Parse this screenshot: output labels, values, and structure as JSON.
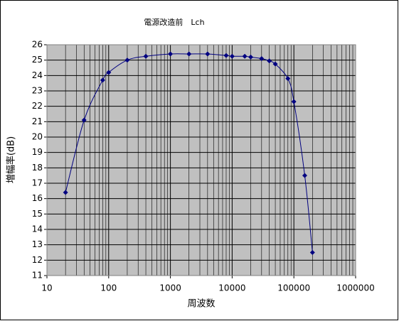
{
  "chart_data": {
    "type": "line",
    "title": "電源改造前　Lch",
    "x_label": "周波数",
    "y_label": "増幅率(dB)",
    "x": [
      20,
      40,
      80,
      100,
      200,
      400,
      1000,
      2000,
      4000,
      8000,
      10000,
      16000,
      20000,
      30000,
      40000,
      50000,
      80000,
      100000,
      150000,
      200000
    ],
    "series": [
      {
        "name": "Lch",
        "color": "#000080",
        "values": [
          16.4,
          21.1,
          23.7,
          24.2,
          25.0,
          25.25,
          25.4,
          25.4,
          25.4,
          25.3,
          25.25,
          25.25,
          25.2,
          25.1,
          24.95,
          24.75,
          23.8,
          22.3,
          17.5,
          12.5
        ]
      }
    ],
    "xlim": [
      10,
      1000000
    ],
    "xticks": [
      10,
      100,
      1000,
      10000,
      100000,
      1000000
    ],
    "xscale": "log",
    "ylim": [
      11,
      26
    ],
    "yticks": [
      11,
      12,
      13,
      14,
      15,
      16,
      17,
      18,
      19,
      20,
      21,
      22,
      23,
      24,
      25,
      26
    ],
    "grid": true
  }
}
